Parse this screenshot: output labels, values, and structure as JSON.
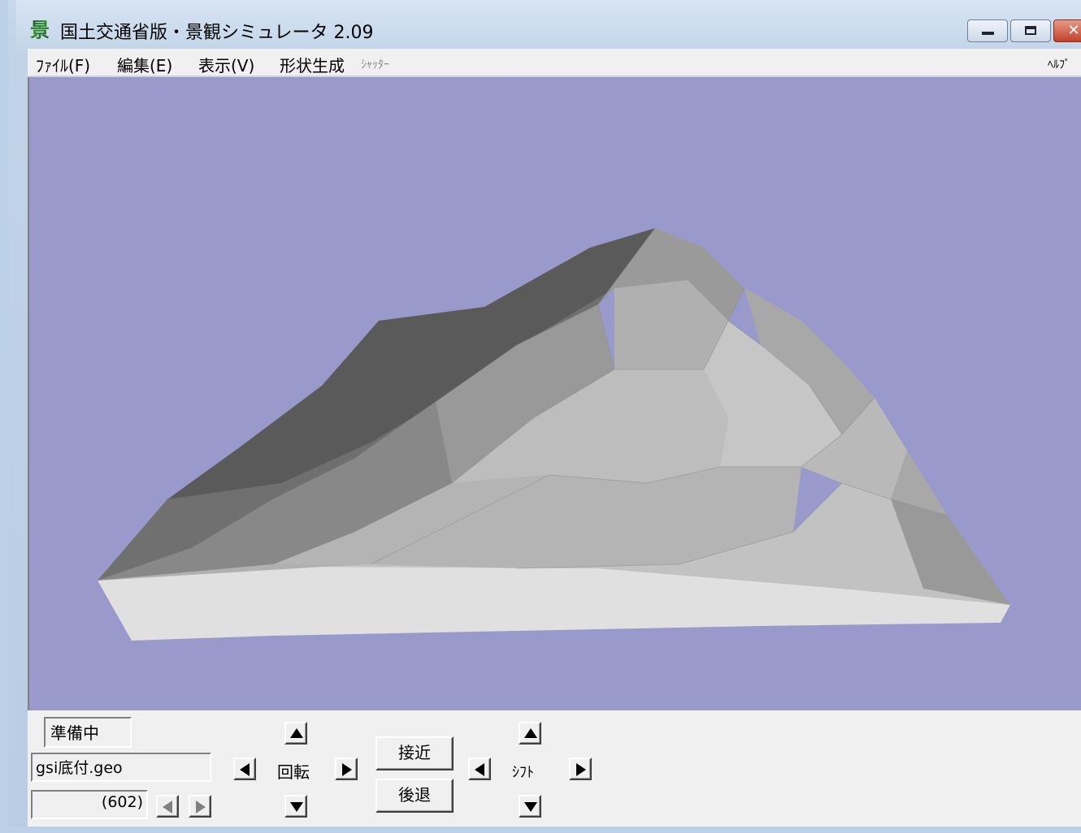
{
  "window": {
    "title": "国土交通省版・景観シミュレータ 2.09",
    "app_icon": "景",
    "controls": {
      "minimize": "minimize-icon",
      "maximize": "maximize-icon",
      "close": "✕"
    }
  },
  "menu": {
    "file": "ﾌｧｲﾙ(F)",
    "edit": "編集(E)",
    "view": "表示(V)",
    "shape": "形状生成",
    "shutter": "ｼｬｯﾀｰ",
    "help": "ﾍﾙﾌﾟ"
  },
  "viewport": {
    "background": "#9999cc",
    "model": "terrain-mesh"
  },
  "panel": {
    "status": "準備中",
    "filename": "gsi底付.geo",
    "frame": "(602)",
    "rotate_label": "回転",
    "shift_label": "ｼﾌﾄ",
    "approach_button": "接近",
    "retreat_button": "後退"
  }
}
